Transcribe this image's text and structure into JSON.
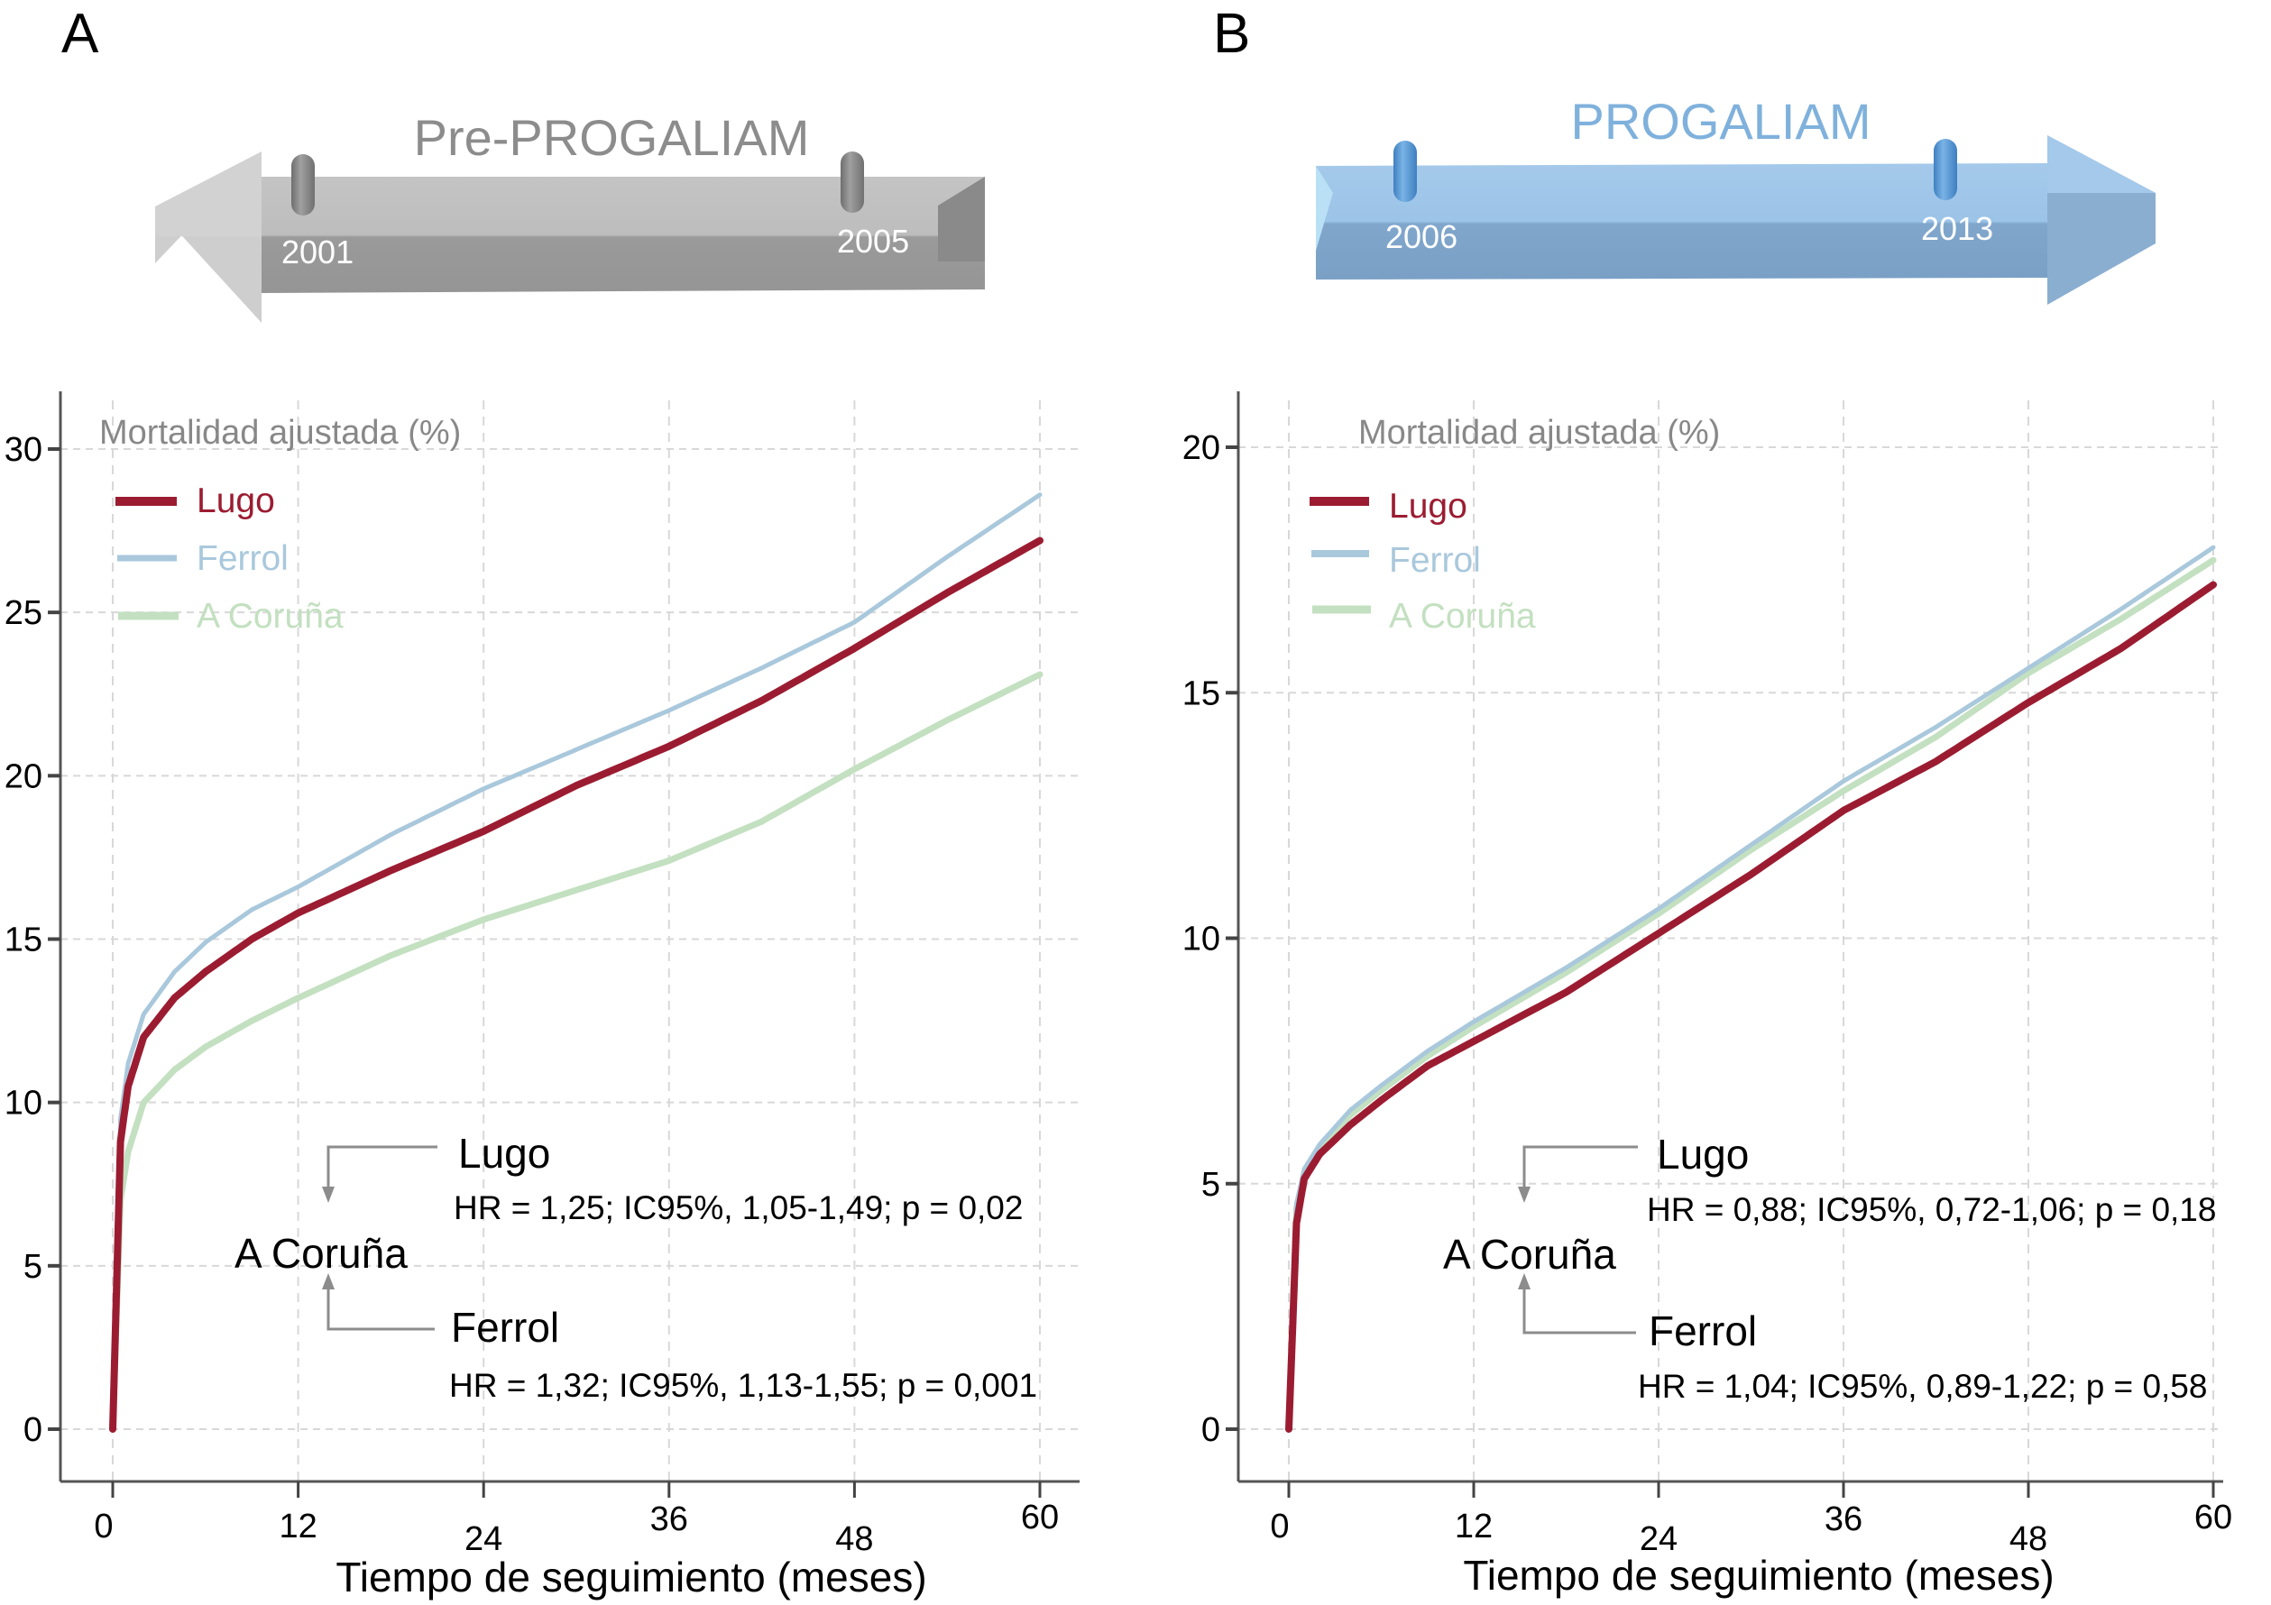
{
  "panels": [
    {
      "letter": "A",
      "banner": {
        "title": "Pre-PROGALIAM",
        "year_start": "2001",
        "year_end": "2005",
        "direction": "left",
        "color": "#a9a9a9"
      },
      "annotation": {
        "reference": "A Coruña",
        "lugo_label": "Lugo",
        "lugo_hr": "HR = 1,25; IC95%, 1,05-1,49; p = 0,02",
        "ferrol_label": "Ferrol",
        "ferrol_hr": "HR = 1,32; IC95%, 1,13-1,55; p = 0,001"
      }
    },
    {
      "letter": "B",
      "banner": {
        "title": "PROGALIAM",
        "year_start": "2006",
        "year_end": "2013",
        "direction": "right",
        "color": "#7fb1dc"
      },
      "annotation": {
        "reference": "A Coruña",
        "lugo_label": "Lugo",
        "lugo_hr": "HR = 0,88; IC95%, 0,72-1,06; p = 0,18",
        "ferrol_label": "Ferrol",
        "ferrol_hr": "HR = 1,04; IC95%, 0,89-1,22; p = 0,58"
      }
    }
  ],
  "chart_data": [
    {
      "type": "line",
      "title": "Pre-PROGALIAM (2001-2005)",
      "xlabel": "Tiempo de seguimiento (meses)",
      "ylabel": "Mortalidad ajustada (%)",
      "xlim": [
        0,
        60
      ],
      "ylim": [
        0,
        30
      ],
      "xticks": [
        0,
        12,
        24,
        36,
        48,
        60
      ],
      "xtick_labels": [
        "0",
        "12",
        "24",
        "36",
        "48",
        "60"
      ],
      "yticks": [
        0,
        5,
        10,
        15,
        20,
        25,
        30
      ],
      "ytick_labels": [
        "0",
        "5",
        "10",
        "15",
        "20",
        "25",
        "30"
      ],
      "grid": true,
      "legend_position": "top-left",
      "x": [
        0,
        0.5,
        1,
        2,
        4,
        6,
        9,
        12,
        18,
        24,
        30,
        36,
        42,
        48,
        54,
        60
      ],
      "series": [
        {
          "name": "Lugo",
          "color": "#9b1c31",
          "values": [
            0,
            8.8,
            10.5,
            12.0,
            13.2,
            14.0,
            15.0,
            15.8,
            17.1,
            18.3,
            19.7,
            20.9,
            22.3,
            23.9,
            25.6,
            27.2
          ]
        },
        {
          "name": "Ferrol",
          "color": "#a9c8dc",
          "values": [
            0,
            9.5,
            11.2,
            12.7,
            14.0,
            14.9,
            15.9,
            16.6,
            18.2,
            19.6,
            20.8,
            22.0,
            23.3,
            24.7,
            26.7,
            28.6
          ]
        },
        {
          "name": "A Coruña",
          "color": "#c3e0c0",
          "values": [
            0,
            7.0,
            8.5,
            10.0,
            11.0,
            11.7,
            12.5,
            13.2,
            14.5,
            15.6,
            16.5,
            17.4,
            18.6,
            20.2,
            21.7,
            23.1
          ]
        }
      ]
    },
    {
      "type": "line",
      "title": "PROGALIAM (2006-2013)",
      "xlabel": "Tiempo de seguimiento (meses)",
      "ylabel": "Mortalidad ajustada (%)",
      "xlim": [
        0,
        60
      ],
      "ylim": [
        0,
        20
      ],
      "xticks": [
        0,
        12,
        24,
        36,
        48,
        60
      ],
      "xtick_labels": [
        "0",
        "12",
        "24",
        "36",
        "48",
        "60"
      ],
      "yticks": [
        0,
        5,
        10,
        15,
        20
      ],
      "ytick_labels": [
        "0",
        "5",
        "10",
        "15",
        "20"
      ],
      "grid": true,
      "legend_position": "top-left",
      "x": [
        0,
        0.5,
        1,
        2,
        4,
        6,
        9,
        12,
        18,
        24,
        30,
        36,
        42,
        48,
        54,
        60
      ],
      "series": [
        {
          "name": "Lugo",
          "color": "#9b1c31",
          "values": [
            0,
            4.2,
            5.1,
            5.6,
            6.2,
            6.7,
            7.4,
            7.9,
            8.9,
            10.1,
            11.3,
            12.6,
            13.6,
            14.8,
            15.9,
            17.2
          ]
        },
        {
          "name": "Ferrol",
          "color": "#a9c8dc",
          "values": [
            0,
            4.6,
            5.3,
            5.8,
            6.5,
            7.0,
            7.7,
            8.3,
            9.4,
            10.6,
            11.9,
            13.2,
            14.3,
            15.5,
            16.7,
            17.96
          ]
        },
        {
          "name": "A Coruña",
          "color": "#c3e0c0",
          "values": [
            0,
            4.5,
            5.2,
            5.7,
            6.4,
            6.9,
            7.6,
            8.2,
            9.3,
            10.5,
            11.8,
            13.0,
            14.1,
            15.4,
            16.5,
            17.7
          ]
        }
      ]
    }
  ]
}
